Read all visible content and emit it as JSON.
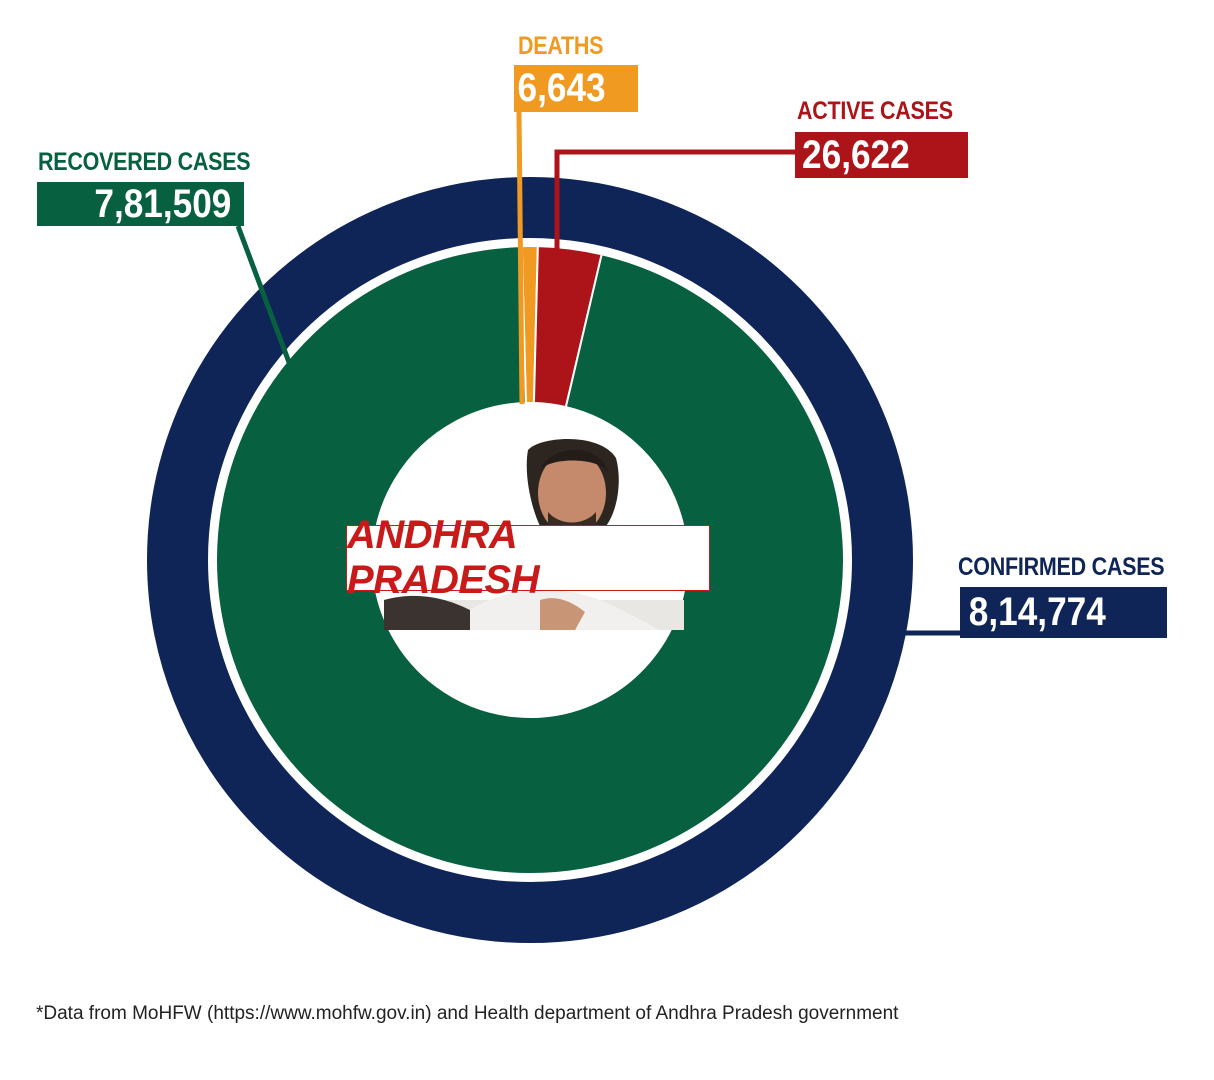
{
  "chart_data": {
    "type": "pie",
    "center_label": "ANDHRA PRADESH",
    "outer_ring": {
      "label": "CONFIRMED CASES",
      "display": "8,14,774",
      "value": 814774,
      "color": "#0f2557"
    },
    "slices": [
      {
        "label": "RECOVERED CASES",
        "display": "7,81,509",
        "value": 781509,
        "color": "#07603f"
      },
      {
        "label": "DEATHS",
        "display": "6,643",
        "value": 6643,
        "color": "#f09a22"
      },
      {
        "label": "ACTIVE CASES",
        "display": "26,622",
        "value": 26622,
        "color": "#ac1419"
      }
    ],
    "footnote": "*Data from MoHFW (https://www.mohfw.gov.in) and Health department of Andhra Pradesh government"
  }
}
